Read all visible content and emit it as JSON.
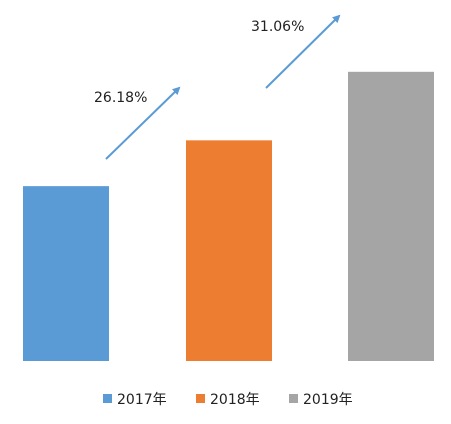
{
  "chart_data": {
    "type": "bar",
    "title": "",
    "xlabel": "",
    "ylabel": "",
    "categories": [
      "2017年",
      "2018年",
      "2019年"
    ],
    "values": [
      100,
      126.18,
      165.37
    ],
    "ylim": [
      0,
      195
    ],
    "grid": false,
    "legend": {
      "position": "bottom",
      "entries": [
        "2017年",
        "2018年",
        "2019年"
      ]
    },
    "colors": [
      "#5b9bd5",
      "#ed7d31",
      "#a5a5a5"
    ],
    "annotations": [
      {
        "text": "26.18%",
        "from": "2017年",
        "to": "2018年",
        "type": "growth-arrow"
      },
      {
        "text": "31.06%",
        "from": "2018年",
        "to": "2019年",
        "type": "growth-arrow"
      }
    ],
    "arrow_color": "#5b9bd5"
  }
}
